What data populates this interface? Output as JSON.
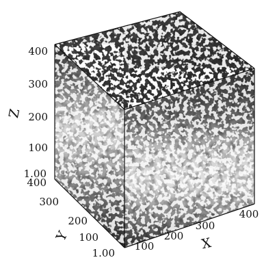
{
  "chart_data": {
    "type": "heatmap",
    "dimensions": 3,
    "colormap": "grayscale",
    "axes": {
      "x": {
        "label": "X",
        "ticks": [
          "1.00",
          "100",
          "200",
          "300",
          "400"
        ],
        "range": [
          1,
          400
        ]
      },
      "y": {
        "label": "Y",
        "ticks": [
          "400",
          "300",
          "200",
          "100",
          "1.00"
        ],
        "range": [
          1,
          400
        ]
      },
      "z": {
        "label": "Z",
        "ticks": [
          "1.00",
          "100",
          "200",
          "300",
          "400"
        ],
        "range": [
          1,
          400
        ]
      }
    },
    "grid": false,
    "legend": "none"
  }
}
